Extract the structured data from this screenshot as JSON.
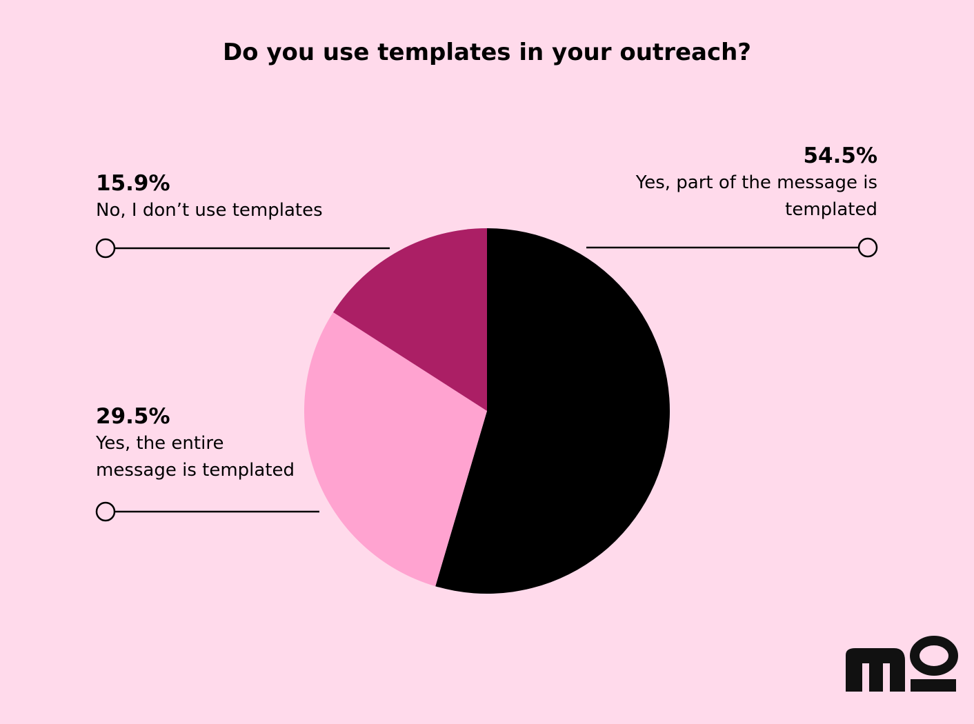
{
  "chart_data": {
    "type": "pie",
    "title": "Do you use templates in your outreach?",
    "categories": [
      "Yes, part of the message is templated",
      "Yes, the entire message is templated",
      "No, I don’t use templates"
    ],
    "values": [
      54.5,
      29.5,
      15.9
    ],
    "value_labels": [
      "54.5%",
      "29.5%",
      "15.9%"
    ],
    "colors": [
      "#000000",
      "#ffa3d0",
      "#ab1f65"
    ]
  }
}
